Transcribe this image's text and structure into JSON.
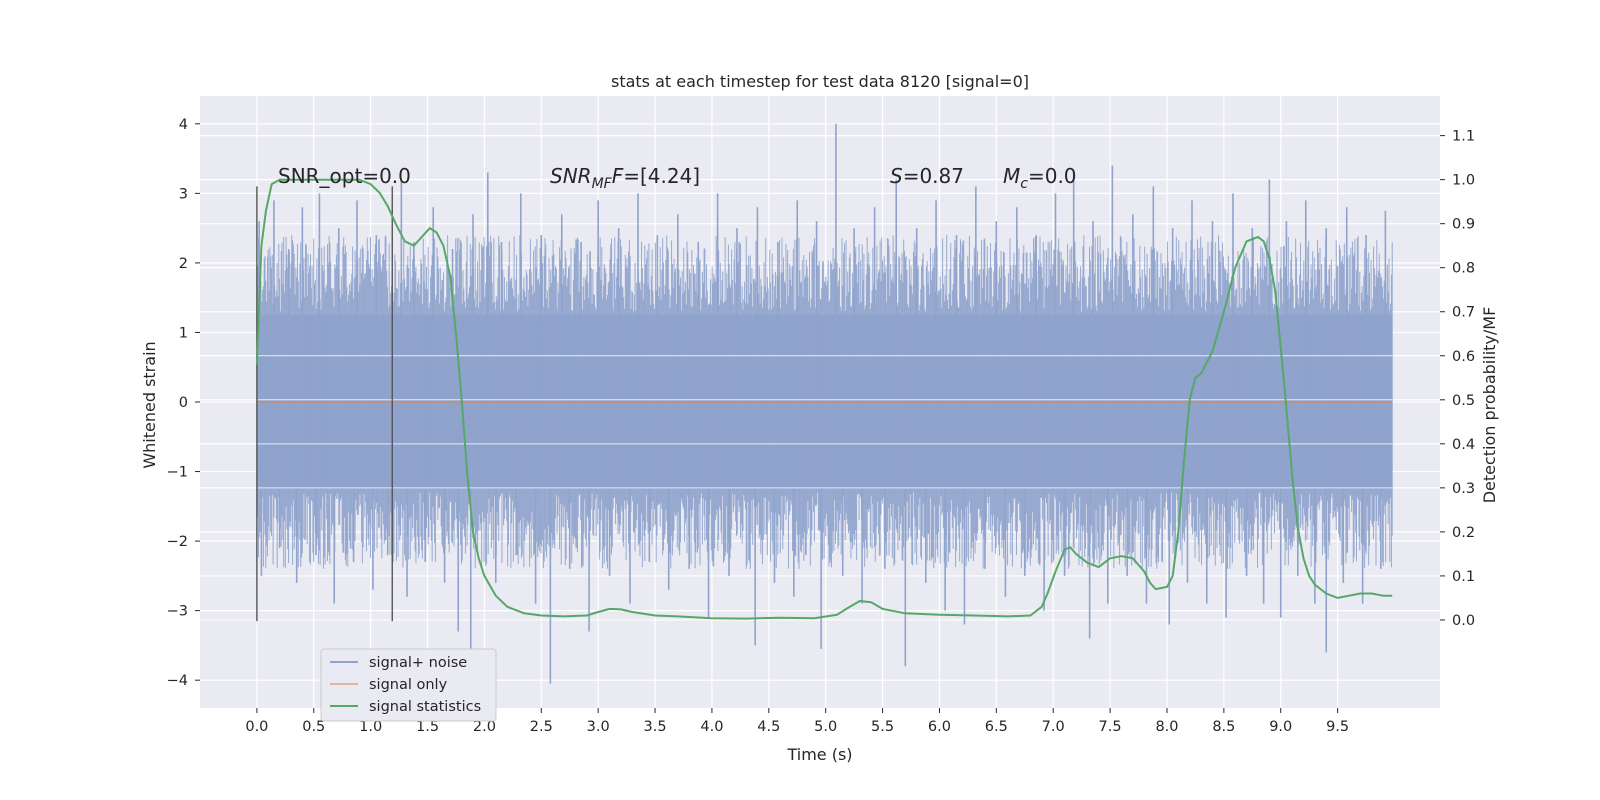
{
  "chart_data": {
    "type": "line",
    "title": "stats at each timestep for test data 8120 [signal=0]",
    "xlabel": "Time (s)",
    "ylabel": "Whitened strain",
    "ylabel_right": "Detection probability/MF",
    "xlim": [
      -0.5,
      10.4
    ],
    "ylim": [
      -4.4,
      4.4
    ],
    "ylim_right": [
      -0.2,
      1.19
    ],
    "x_ticks": [
      "0.0",
      "0.5",
      "1.0",
      "1.5",
      "2.0",
      "2.5",
      "3.0",
      "3.5",
      "4.0",
      "4.5",
      "5.0",
      "5.5",
      "6.0",
      "6.5",
      "7.0",
      "7.5",
      "8.0",
      "8.5",
      "9.0",
      "9.5"
    ],
    "y_ticks_left": [
      "−4",
      "−3",
      "−2",
      "−1",
      "0",
      "1",
      "2",
      "3",
      "4"
    ],
    "y_ticks_right": [
      "0.0",
      "0.1",
      "0.2",
      "0.3",
      "0.4",
      "0.5",
      "0.6",
      "0.7",
      "0.8",
      "0.9",
      "1.0",
      "1.1"
    ],
    "grid": true,
    "legend_position": "lower-left",
    "vertical_lines": [
      {
        "x": 0.0,
        "y_range": [
          -3.15,
          3.1
        ]
      },
      {
        "x": 1.19,
        "y_range": [
          -3.15,
          3.1
        ]
      }
    ],
    "annotations": {
      "snr_opt": "SNR_opt=0.0",
      "snr_mf_main": "SNR",
      "snr_mf_sub": "MF",
      "snr_mf_rest": "=[4.24]",
      "s_main": "S",
      "s_rest": "=0.87",
      "mc_main": "M",
      "mc_sub": "c",
      "mc_rest": "=0.0"
    },
    "series": [
      {
        "name": "signal+ noise",
        "color": "#8fa3cc",
        "axis": "left",
        "band_x_range": [
          0.0,
          9.98
        ],
        "band_y_range": [
          -1.25,
          1.25
        ],
        "spikes_upper": [
          [
            0.02,
            2.6
          ],
          [
            0.15,
            2.9
          ],
          [
            0.28,
            2.2
          ],
          [
            0.4,
            2.8
          ],
          [
            0.55,
            3.0
          ],
          [
            0.72,
            2.5
          ],
          [
            0.88,
            2.9
          ],
          [
            1.05,
            2.4
          ],
          [
            1.27,
            3.2
          ],
          [
            1.38,
            2.3
          ],
          [
            1.55,
            2.8
          ],
          [
            1.72,
            2.2
          ],
          [
            1.9,
            2.7
          ],
          [
            2.03,
            3.3
          ],
          [
            2.15,
            2.3
          ],
          [
            2.32,
            3.0
          ],
          [
            2.5,
            2.4
          ],
          [
            2.68,
            2.7
          ],
          [
            2.85,
            2.3
          ],
          [
            3.0,
            2.9
          ],
          [
            3.18,
            2.5
          ],
          [
            3.35,
            3.0
          ],
          [
            3.52,
            2.4
          ],
          [
            3.7,
            2.7
          ],
          [
            3.88,
            2.3
          ],
          [
            4.05,
            3.0
          ],
          [
            4.22,
            2.5
          ],
          [
            4.4,
            2.8
          ],
          [
            4.58,
            2.3
          ],
          [
            4.75,
            2.9
          ],
          [
            4.92,
            2.6
          ],
          [
            5.09,
            4.0
          ],
          [
            5.25,
            2.5
          ],
          [
            5.43,
            2.8
          ],
          [
            5.62,
            3.2
          ],
          [
            5.8,
            2.5
          ],
          [
            5.97,
            2.9
          ],
          [
            6.15,
            2.4
          ],
          [
            6.32,
            3.1
          ],
          [
            6.5,
            2.6
          ],
          [
            6.68,
            2.8
          ],
          [
            6.85,
            2.4
          ],
          [
            7.02,
            3.0
          ],
          [
            7.18,
            3.3
          ],
          [
            7.35,
            2.6
          ],
          [
            7.52,
            3.4
          ],
          [
            7.7,
            2.7
          ],
          [
            7.88,
            3.1
          ],
          [
            8.05,
            2.5
          ],
          [
            8.22,
            2.9
          ],
          [
            8.4,
            2.6
          ],
          [
            8.58,
            3.0
          ],
          [
            8.75,
            2.5
          ],
          [
            8.9,
            3.2
          ],
          [
            9.05,
            2.6
          ],
          [
            9.22,
            2.9
          ],
          [
            9.4,
            2.5
          ],
          [
            9.58,
            2.8
          ],
          [
            9.75,
            2.4
          ],
          [
            9.92,
            2.75
          ]
        ],
        "spikes_lower": [
          [
            0.04,
            -2.5
          ],
          [
            0.2,
            -2.1
          ],
          [
            0.35,
            -2.6
          ],
          [
            0.52,
            -2.2
          ],
          [
            0.68,
            -2.9
          ],
          [
            0.85,
            -2.3
          ],
          [
            1.02,
            -2.7
          ],
          [
            1.15,
            -2.2
          ],
          [
            1.32,
            -2.8
          ],
          [
            1.48,
            -2.3
          ],
          [
            1.65,
            -2.6
          ],
          [
            1.77,
            -3.3
          ],
          [
            1.88,
            -3.6
          ],
          [
            2.1,
            -2.6
          ],
          [
            2.28,
            -2.2
          ],
          [
            2.45,
            -2.9
          ],
          [
            2.58,
            -4.05
          ],
          [
            2.75,
            -2.4
          ],
          [
            2.92,
            -3.3
          ],
          [
            3.1,
            -2.5
          ],
          [
            3.28,
            -2.9
          ],
          [
            3.45,
            -2.3
          ],
          [
            3.62,
            -2.7
          ],
          [
            3.8,
            -2.4
          ],
          [
            3.97,
            -3.1
          ],
          [
            4.15,
            -2.5
          ],
          [
            4.38,
            -3.5
          ],
          [
            4.55,
            -2.6
          ],
          [
            4.72,
            -2.8
          ],
          [
            4.96,
            -3.55
          ],
          [
            5.15,
            -2.5
          ],
          [
            5.32,
            -2.9
          ],
          [
            5.52,
            -2.4
          ],
          [
            5.7,
            -3.8
          ],
          [
            5.88,
            -2.6
          ],
          [
            6.05,
            -3.0
          ],
          [
            6.22,
            -3.2
          ],
          [
            6.4,
            -2.4
          ],
          [
            6.58,
            -2.8
          ],
          [
            6.75,
            -2.5
          ],
          [
            6.92,
            -3.0
          ],
          [
            7.1,
            -2.5
          ],
          [
            7.32,
            -3.4
          ],
          [
            7.48,
            -2.9
          ],
          [
            7.65,
            -2.5
          ],
          [
            7.82,
            -2.9
          ],
          [
            8.02,
            -3.2
          ],
          [
            8.18,
            -2.6
          ],
          [
            8.35,
            -2.9
          ],
          [
            8.52,
            -3.1
          ],
          [
            8.7,
            -2.5
          ],
          [
            8.85,
            -2.9
          ],
          [
            9.0,
            -3.1
          ],
          [
            9.15,
            -2.5
          ],
          [
            9.3,
            -2.9
          ],
          [
            9.4,
            -3.6
          ],
          [
            9.55,
            -2.6
          ],
          [
            9.72,
            -2.9
          ],
          [
            9.88,
            -2.4
          ]
        ]
      },
      {
        "name": "signal only",
        "color": "#dd8452",
        "axis": "left",
        "x": [
          0.0,
          9.98
        ],
        "y": [
          0.0,
          0.0
        ]
      },
      {
        "name": "signal statistics",
        "color": "#55a868",
        "axis": "right",
        "x": [
          0.0,
          0.04,
          0.08,
          0.13,
          0.2,
          0.3,
          0.45,
          0.6,
          0.75,
          0.9,
          1.0,
          1.08,
          1.15,
          1.22,
          1.3,
          1.38,
          1.45,
          1.52,
          1.58,
          1.64,
          1.7,
          1.75,
          1.8,
          1.85,
          1.9,
          1.95,
          2.0,
          2.1,
          2.2,
          2.35,
          2.5,
          2.7,
          2.9,
          3.0,
          3.1,
          3.2,
          3.3,
          3.5,
          3.7,
          4.0,
          4.3,
          4.6,
          4.9,
          5.1,
          5.2,
          5.3,
          5.4,
          5.5,
          5.7,
          6.0,
          6.3,
          6.6,
          6.8,
          6.9,
          6.95,
          7.02,
          7.1,
          7.15,
          7.2,
          7.3,
          7.4,
          7.5,
          7.6,
          7.7,
          7.8,
          7.85,
          7.9,
          8.0,
          8.05,
          8.1,
          8.15,
          8.2,
          8.25,
          8.3,
          8.4,
          8.5,
          8.6,
          8.7,
          8.8,
          8.85,
          8.9,
          8.95,
          9.0,
          9.05,
          9.1,
          9.15,
          9.2,
          9.25,
          9.3,
          9.4,
          9.5,
          9.6,
          9.7,
          9.8,
          9.9,
          9.98
        ],
        "y": [
          0.58,
          0.85,
          0.93,
          0.99,
          1.0,
          1.0,
          1.0,
          1.0,
          1.0,
          1.0,
          0.99,
          0.97,
          0.94,
          0.9,
          0.86,
          0.85,
          0.87,
          0.89,
          0.88,
          0.85,
          0.78,
          0.65,
          0.5,
          0.33,
          0.2,
          0.14,
          0.1,
          0.055,
          0.03,
          0.015,
          0.01,
          0.008,
          0.01,
          0.018,
          0.025,
          0.024,
          0.018,
          0.01,
          0.008,
          0.004,
          0.003,
          0.005,
          0.004,
          0.012,
          0.028,
          0.043,
          0.04,
          0.025,
          0.015,
          0.012,
          0.01,
          0.008,
          0.01,
          0.03,
          0.06,
          0.11,
          0.16,
          0.165,
          0.15,
          0.13,
          0.12,
          0.14,
          0.145,
          0.14,
          0.11,
          0.085,
          0.07,
          0.075,
          0.1,
          0.2,
          0.36,
          0.5,
          0.55,
          0.56,
          0.61,
          0.7,
          0.8,
          0.86,
          0.87,
          0.86,
          0.82,
          0.75,
          0.62,
          0.48,
          0.33,
          0.21,
          0.14,
          0.1,
          0.08,
          0.06,
          0.05,
          0.055,
          0.06,
          0.06,
          0.055,
          0.055
        ]
      }
    ]
  }
}
